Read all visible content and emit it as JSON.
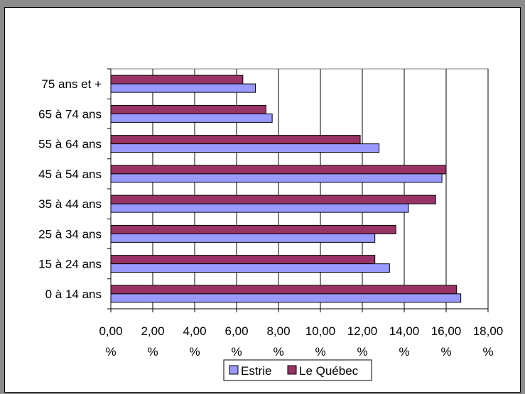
{
  "chart_data": {
    "type": "bar",
    "orientation": "horizontal",
    "categories": [
      "0 à 14 ans",
      "15 à 24 ans",
      "25 à 34 ans",
      "35 à 44 ans",
      "45 à 54 ans",
      "55 à 64 ans",
      "65 à 74 ans",
      "75 ans et +"
    ],
    "series": [
      {
        "name": "Estrie",
        "color": "#9999ff",
        "values": [
          16.7,
          13.3,
          12.6,
          14.2,
          15.8,
          12.8,
          7.7,
          6.9
        ]
      },
      {
        "name": "Le Québec",
        "color": "#993366",
        "values": [
          16.5,
          12.6,
          13.6,
          15.5,
          16.0,
          11.9,
          7.4,
          6.3
        ]
      }
    ],
    "x_ticks": [
      "0,00",
      "2,00",
      "4,00",
      "6,00",
      "8,00",
      "10,00",
      "12,00",
      "14,00",
      "16,00",
      "18,00"
    ],
    "x_unit": "%",
    "xlim": [
      0,
      18
    ],
    "grid": "vertical",
    "legend_position": "bottom"
  }
}
